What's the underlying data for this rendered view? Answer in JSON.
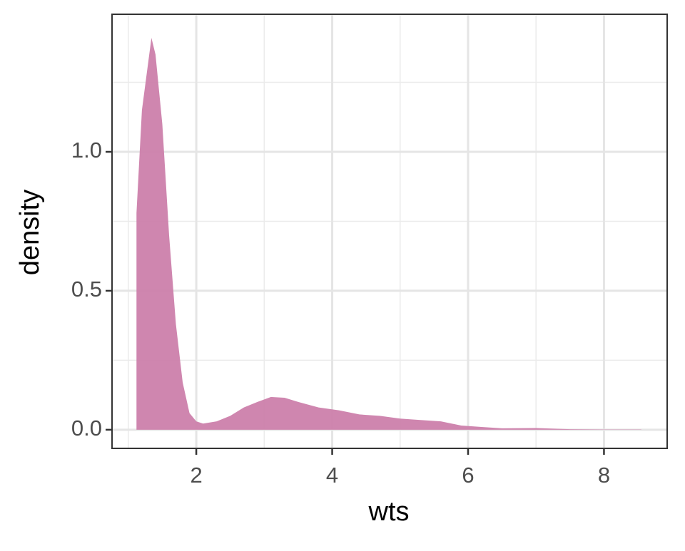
{
  "chart_data": {
    "type": "area",
    "x_label": "wts",
    "y_label": "density",
    "series": [
      {
        "name": "density",
        "color": "#cc7fab",
        "x": [
          1.12,
          1.2,
          1.34,
          1.4,
          1.5,
          1.6,
          1.7,
          1.8,
          1.9,
          2.0,
          2.1,
          2.3,
          2.5,
          2.7,
          2.9,
          3.1,
          3.3,
          3.5,
          3.8,
          4.1,
          4.4,
          4.7,
          5.0,
          5.3,
          5.6,
          5.9,
          6.2,
          6.5,
          7.0,
          7.5,
          8.0,
          8.55
        ],
        "values": [
          0.78,
          1.15,
          1.41,
          1.35,
          1.1,
          0.7,
          0.38,
          0.17,
          0.06,
          0.03,
          0.022,
          0.03,
          0.05,
          0.08,
          0.1,
          0.118,
          0.115,
          0.1,
          0.08,
          0.07,
          0.055,
          0.05,
          0.04,
          0.035,
          0.03,
          0.015,
          0.01,
          0.005,
          0.006,
          0.002,
          0.001,
          0.001
        ]
      }
    ],
    "xlim": [
      0.76,
      8.93
    ],
    "ylim": [
      -0.067,
      1.495
    ],
    "xticks": [
      2,
      4,
      6,
      8
    ],
    "yticks": [
      {
        "value": 0,
        "label": "0.0"
      },
      {
        "value": 0.5,
        "label": "0.5"
      },
      {
        "value": 1,
        "label": "1.0"
      }
    ],
    "x_minor_grid": [
      1,
      3,
      5,
      7
    ],
    "y_minor_grid": [
      0.25,
      0.75,
      1.25
    ],
    "grid": true
  }
}
